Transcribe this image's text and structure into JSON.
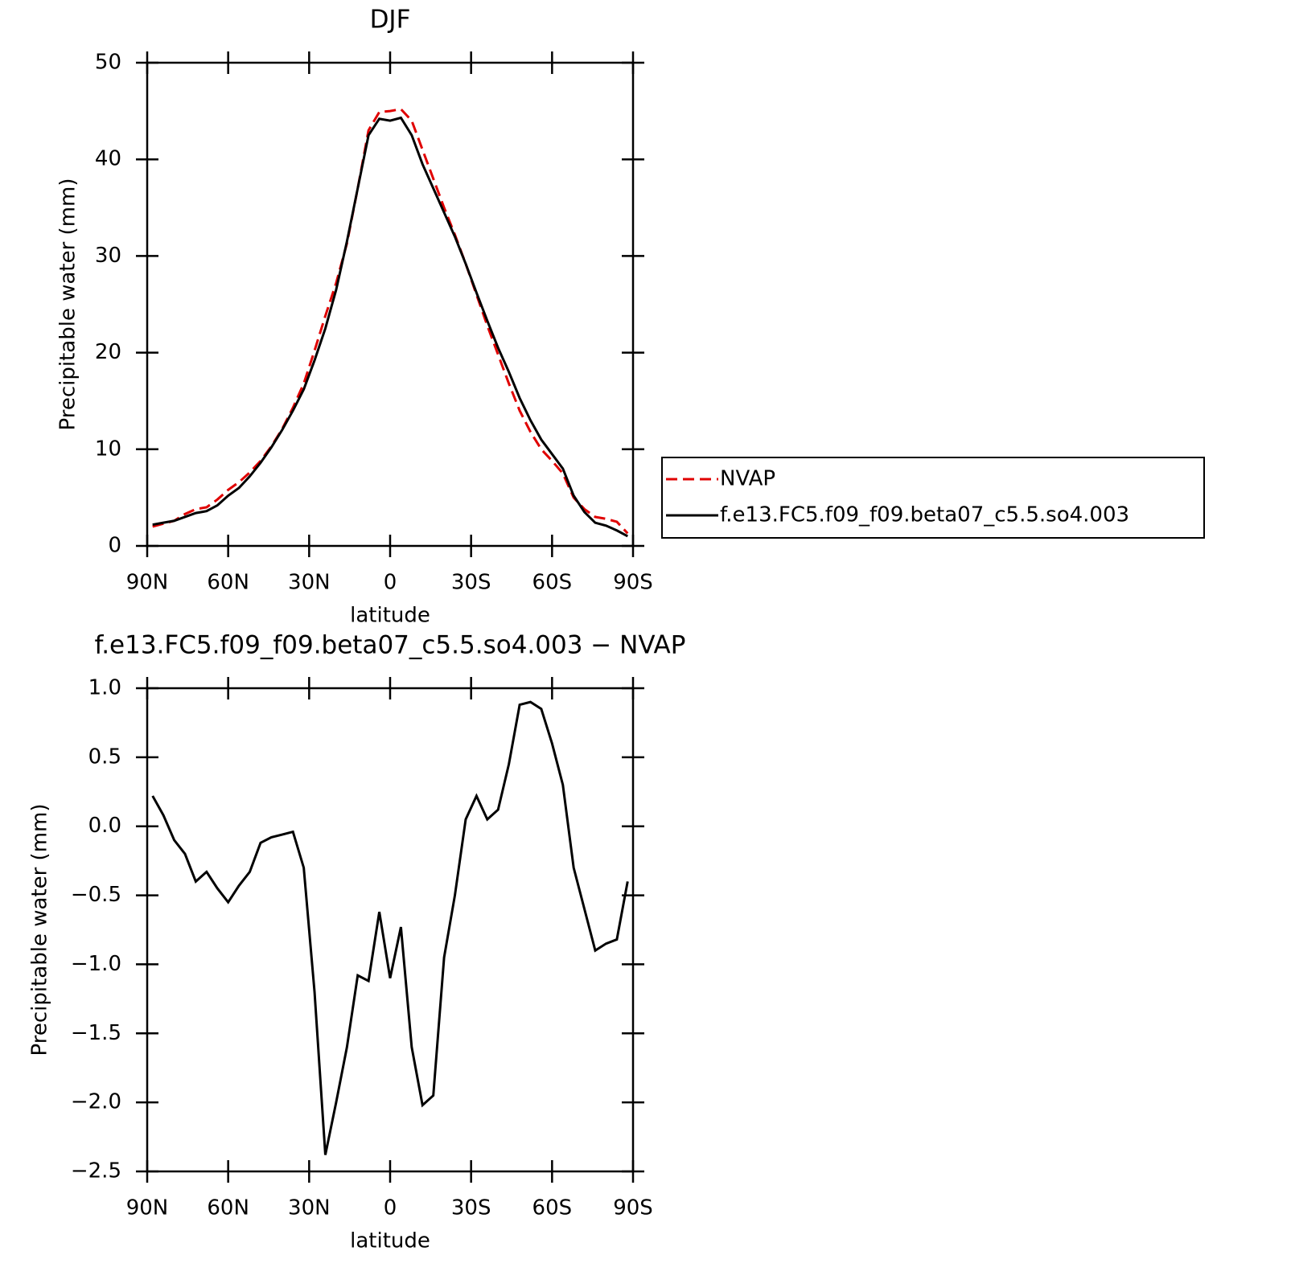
{
  "chart_data": [
    {
      "type": "line",
      "title": "DJF",
      "xlabel": "latitude",
      "ylabel": "Precipitable water (mm)",
      "x": [
        88,
        84,
        80,
        76,
        72,
        68,
        64,
        60,
        56,
        52,
        48,
        44,
        40,
        36,
        32,
        28,
        24,
        20,
        16,
        12,
        8,
        4,
        0,
        -4,
        -8,
        -12,
        -16,
        -20,
        -24,
        -28,
        -32,
        -36,
        -40,
        -44,
        -48,
        -52,
        -56,
        -60,
        -64,
        -68,
        -72,
        -76,
        -80,
        -84,
        -88
      ],
      "series": [
        {
          "name": "NVAP",
          "color": "#e00000",
          "dash": true,
          "values": [
            2.0,
            2.3,
            2.6,
            3.3,
            3.8,
            4.0,
            4.8,
            5.8,
            6.6,
            7.6,
            8.8,
            10.3,
            12.1,
            14.3,
            16.8,
            20.2,
            23.8,
            27.2,
            31.3,
            37,
            43,
            44.9,
            45,
            45.2,
            44,
            41,
            38,
            35,
            32.2,
            29.2,
            26,
            22.8,
            19.8,
            16.8,
            14,
            11.8,
            10,
            8.8,
            7.5,
            5,
            3.8,
            3.0,
            2.8,
            2.5,
            1.3
          ]
        },
        {
          "name": "f.e13.FC5.f09_f09.beta07_c5.5.so4.003",
          "color": "#000000",
          "dash": false,
          "values": [
            2.2,
            2.4,
            2.6,
            3.0,
            3.4,
            3.6,
            4.2,
            5.2,
            6.0,
            7.2,
            8.6,
            10.2,
            12,
            14,
            16.2,
            19.2,
            22.5,
            26.5,
            31.5,
            37,
            42.5,
            44.2,
            44,
            44.3,
            42.5,
            39.5,
            37,
            34.5,
            32,
            29.2,
            26.2,
            23.3,
            20.5,
            18,
            15.3,
            13,
            11,
            9.5,
            8,
            5.2,
            3.5,
            2.4,
            2.1,
            1.6,
            1.0
          ]
        }
      ],
      "xlim": [
        90,
        -90
      ],
      "xticks": [
        {
          "value": 90,
          "label": "90N"
        },
        {
          "value": 60,
          "label": "60N"
        },
        {
          "value": 30,
          "label": "30N"
        },
        0,
        {
          "value": -30,
          "label": "30S"
        },
        {
          "value": -60,
          "label": "60S"
        },
        {
          "value": -90,
          "label": "90S"
        }
      ],
      "ylim": [
        0,
        50
      ],
      "yticks": [
        0,
        10,
        20,
        30,
        40,
        50
      ],
      "legend": "right"
    },
    {
      "type": "line",
      "title": "f.e13.FC5.f09_f09.beta07_c5.5.so4.003 − NVAP",
      "xlabel": "latitude",
      "ylabel": "Precipitable water (mm)",
      "x": [
        88,
        84,
        80,
        76,
        72,
        68,
        64,
        60,
        56,
        52,
        48,
        44,
        40,
        36,
        32,
        28,
        24,
        20,
        16,
        12,
        8,
        4,
        0,
        -4,
        -8,
        -12,
        -16,
        -20,
        -24,
        -28,
        -32,
        -36,
        -40,
        -44,
        -48,
        -52,
        -56,
        -60,
        -64,
        -68,
        -72,
        -76,
        -80,
        -84,
        -88
      ],
      "values": [
        0.22,
        0.08,
        -0.1,
        -0.2,
        -0.4,
        -0.33,
        -0.45,
        -0.55,
        -0.43,
        -0.33,
        -0.12,
        -0.08,
        -0.06,
        -0.04,
        -0.3,
        -1.2,
        -2.38,
        -2.0,
        -1.6,
        -1.08,
        -1.12,
        -0.62,
        -1.1,
        -0.73,
        -1.6,
        -2.02,
        -1.95,
        -0.95,
        -0.5,
        0.05,
        0.22,
        0.05,
        0.12,
        0.45,
        0.88,
        0.9,
        0.85,
        0.6,
        0.3,
        -0.3,
        -0.6,
        -0.9,
        -0.85,
        -0.82,
        -0.4
      ],
      "color": "#000000",
      "xlim": [
        90,
        -90
      ],
      "xticks": [
        {
          "value": 90,
          "label": "90N"
        },
        {
          "value": 60,
          "label": "60N"
        },
        {
          "value": 30,
          "label": "30N"
        },
        0,
        {
          "value": -30,
          "label": "30S"
        },
        {
          "value": -60,
          "label": "60S"
        },
        {
          "value": -90,
          "label": "90S"
        }
      ],
      "ylim": [
        -2.5,
        1
      ],
      "yticks": [
        {
          "value": -2.5,
          "label": "−2.5"
        },
        {
          "value": -2,
          "label": "−2.0"
        },
        {
          "value": -1.5,
          "label": "−1.5"
        },
        {
          "value": -1,
          "label": "−1.0"
        },
        {
          "value": -0.5,
          "label": "−0.5"
        },
        {
          "value": 0,
          "label": "0.0"
        },
        0.5,
        {
          "value": 1,
          "label": "1.0"
        }
      ]
    }
  ]
}
